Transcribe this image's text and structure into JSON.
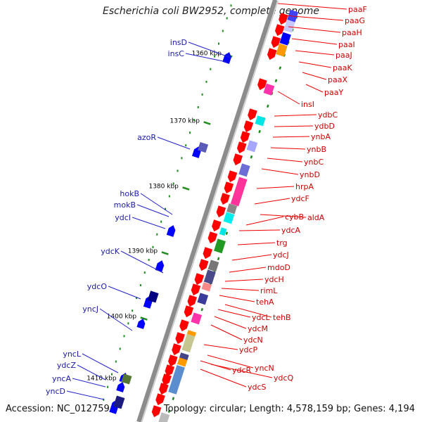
{
  "title": "Escherichia coli BW2952, complete genome",
  "footer": {
    "accession": "Accession: NC_012759",
    "stats": "Topology: circular; Length: 4,578,159 bp; Genes: 4,194"
  },
  "colors": {
    "forward_label": "#cc0000",
    "reverse_label": "#1a1aa6",
    "backbone": "#8c8c8c",
    "tick": "#1e8c1e"
  },
  "position_markers": [
    "1360 kbp",
    "1370 kbp",
    "1380 kbp",
    "1390 kbp",
    "1400 kbp",
    "1410 kbp"
  ],
  "forward_genes": [
    "paaF",
    "paaG",
    "paaH",
    "paaI",
    "paaJ",
    "paaK",
    "paaX",
    "paaY",
    "insI",
    "ydbC",
    "ydbD",
    "ynbA",
    "ynbB",
    "ynbC",
    "ynbD",
    "hrpA",
    "ydcF",
    "aldA",
    "cybB",
    "ydcA",
    "trg",
    "ydcJ",
    "mdoD",
    "ydcH",
    "rimL",
    "tehA",
    "tehB",
    "ydcL",
    "ydcM",
    "ydcN",
    "ydcP",
    "ydcR",
    "yncN",
    "ydcQ",
    "ydcS"
  ],
  "reverse_genes": [
    "insD",
    "insC",
    "azoR",
    "hokB",
    "mokB",
    "ydcI",
    "ydcK",
    "ydcO",
    "yncJ",
    "yncL",
    "ydcZ",
    "yncA",
    "yncD"
  ]
}
